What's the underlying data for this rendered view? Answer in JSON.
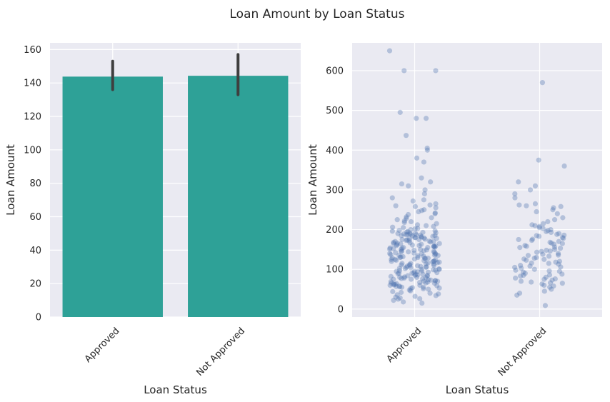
{
  "figure_title": "Loan Amount by Loan Status",
  "chart_data": [
    {
      "type": "bar",
      "categories": [
        "Approved",
        "Not Approved"
      ],
      "values": [
        143.8,
        144.3
      ],
      "error_bars": [
        [
          136,
          153
        ],
        [
          133,
          157
        ]
      ],
      "xlabel": "Loan Status",
      "ylabel": "Loan Amount",
      "ylim": [
        0,
        164
      ],
      "yticks": [
        0,
        20,
        40,
        60,
        80,
        100,
        120,
        140,
        160
      ],
      "bar_color": "#2ea197",
      "errbar_color": "#3f3f3f",
      "grid": true,
      "background": "#eaeaf2"
    },
    {
      "type": "scatter",
      "categories": [
        "Approved",
        "Not Approved"
      ],
      "points": [
        {
          "category": "Approved",
          "y": [
            650,
            600,
            600,
            495,
            480,
            480,
            437,
            405,
            400,
            380,
            370,
            330,
            320,
            315,
            310,
            300,
            290,
            280,
            275,
            272,
            265,
            262,
            260,
            258,
            255,
            250,
            248,
            245,
            242,
            240,
            238,
            232,
            230,
            228,
            225,
            222,
            220,
            218,
            215,
            212,
            210,
            208,
            206,
            205,
            203,
            202,
            200,
            198,
            197,
            196,
            195,
            194,
            193,
            192,
            191,
            190,
            190,
            189,
            188,
            188,
            187,
            187,
            186,
            185,
            185,
            184,
            183,
            182,
            181,
            180,
            180,
            179,
            178,
            177,
            176,
            175,
            175,
            174,
            173,
            172,
            171,
            170,
            170,
            169,
            168,
            167,
            166,
            165,
            165,
            164,
            163,
            162,
            161,
            160,
            160,
            159,
            158,
            158,
            157,
            156,
            155,
            155,
            154,
            153,
            152,
            151,
            150,
            150,
            149,
            148,
            147,
            146,
            145,
            145,
            144,
            143,
            142,
            141,
            140,
            140,
            139,
            138,
            137,
            136,
            135,
            135,
            134,
            133,
            132,
            131,
            130,
            130,
            129,
            128,
            128,
            127,
            126,
            125,
            125,
            124,
            123,
            122,
            121,
            120,
            120,
            119,
            118,
            117,
            116,
            115,
            115,
            114,
            113,
            112,
            111,
            110,
            110,
            109,
            108,
            107,
            106,
            105,
            105,
            104,
            103,
            102,
            101,
            100,
            100,
            99,
            98,
            97,
            96,
            95,
            95,
            94,
            93,
            92,
            91,
            90,
            90,
            89,
            88,
            87,
            86,
            85,
            85,
            84,
            83,
            82,
            81,
            80,
            80,
            79,
            78,
            77,
            76,
            75,
            75,
            74,
            73,
            72,
            71,
            70,
            70,
            69,
            68,
            67,
            66,
            65,
            65,
            64,
            63,
            62,
            61,
            60,
            60,
            59,
            58,
            57,
            56,
            55,
            55,
            54,
            53,
            52,
            51,
            50,
            48,
            46,
            44,
            42,
            40,
            38,
            36,
            34,
            32,
            30,
            28,
            26,
            25,
            22,
            18,
            15
          ]
        },
        {
          "category": "Not Approved",
          "y": [
            570,
            375,
            360,
            320,
            310,
            300,
            290,
            280,
            265,
            262,
            260,
            258,
            255,
            250,
            245,
            240,
            230,
            225,
            220,
            215,
            212,
            210,
            208,
            205,
            203,
            200,
            198,
            195,
            193,
            190,
            188,
            186,
            185,
            183,
            180,
            178,
            176,
            175,
            173,
            170,
            168,
            166,
            165,
            163,
            160,
            158,
            156,
            155,
            153,
            150,
            148,
            146,
            145,
            143,
            140,
            138,
            136,
            135,
            133,
            130,
            128,
            126,
            125,
            123,
            120,
            118,
            116,
            115,
            113,
            110,
            108,
            106,
            105,
            103,
            100,
            98,
            96,
            95,
            93,
            90,
            88,
            86,
            85,
            83,
            80,
            78,
            76,
            75,
            73,
            70,
            68,
            66,
            65,
            63,
            60,
            58,
            55,
            50,
            45,
            40,
            35,
            9
          ]
        }
      ],
      "xlabel": "Loan Status",
      "ylabel": "Loan Amount",
      "ylim": [
        -20,
        670
      ],
      "yticks": [
        0,
        100,
        200,
        300,
        400,
        500,
        600
      ],
      "point_color": "#4c72b0",
      "point_alpha": 0.35,
      "grid": true,
      "background": "#eaeaf2"
    }
  ]
}
